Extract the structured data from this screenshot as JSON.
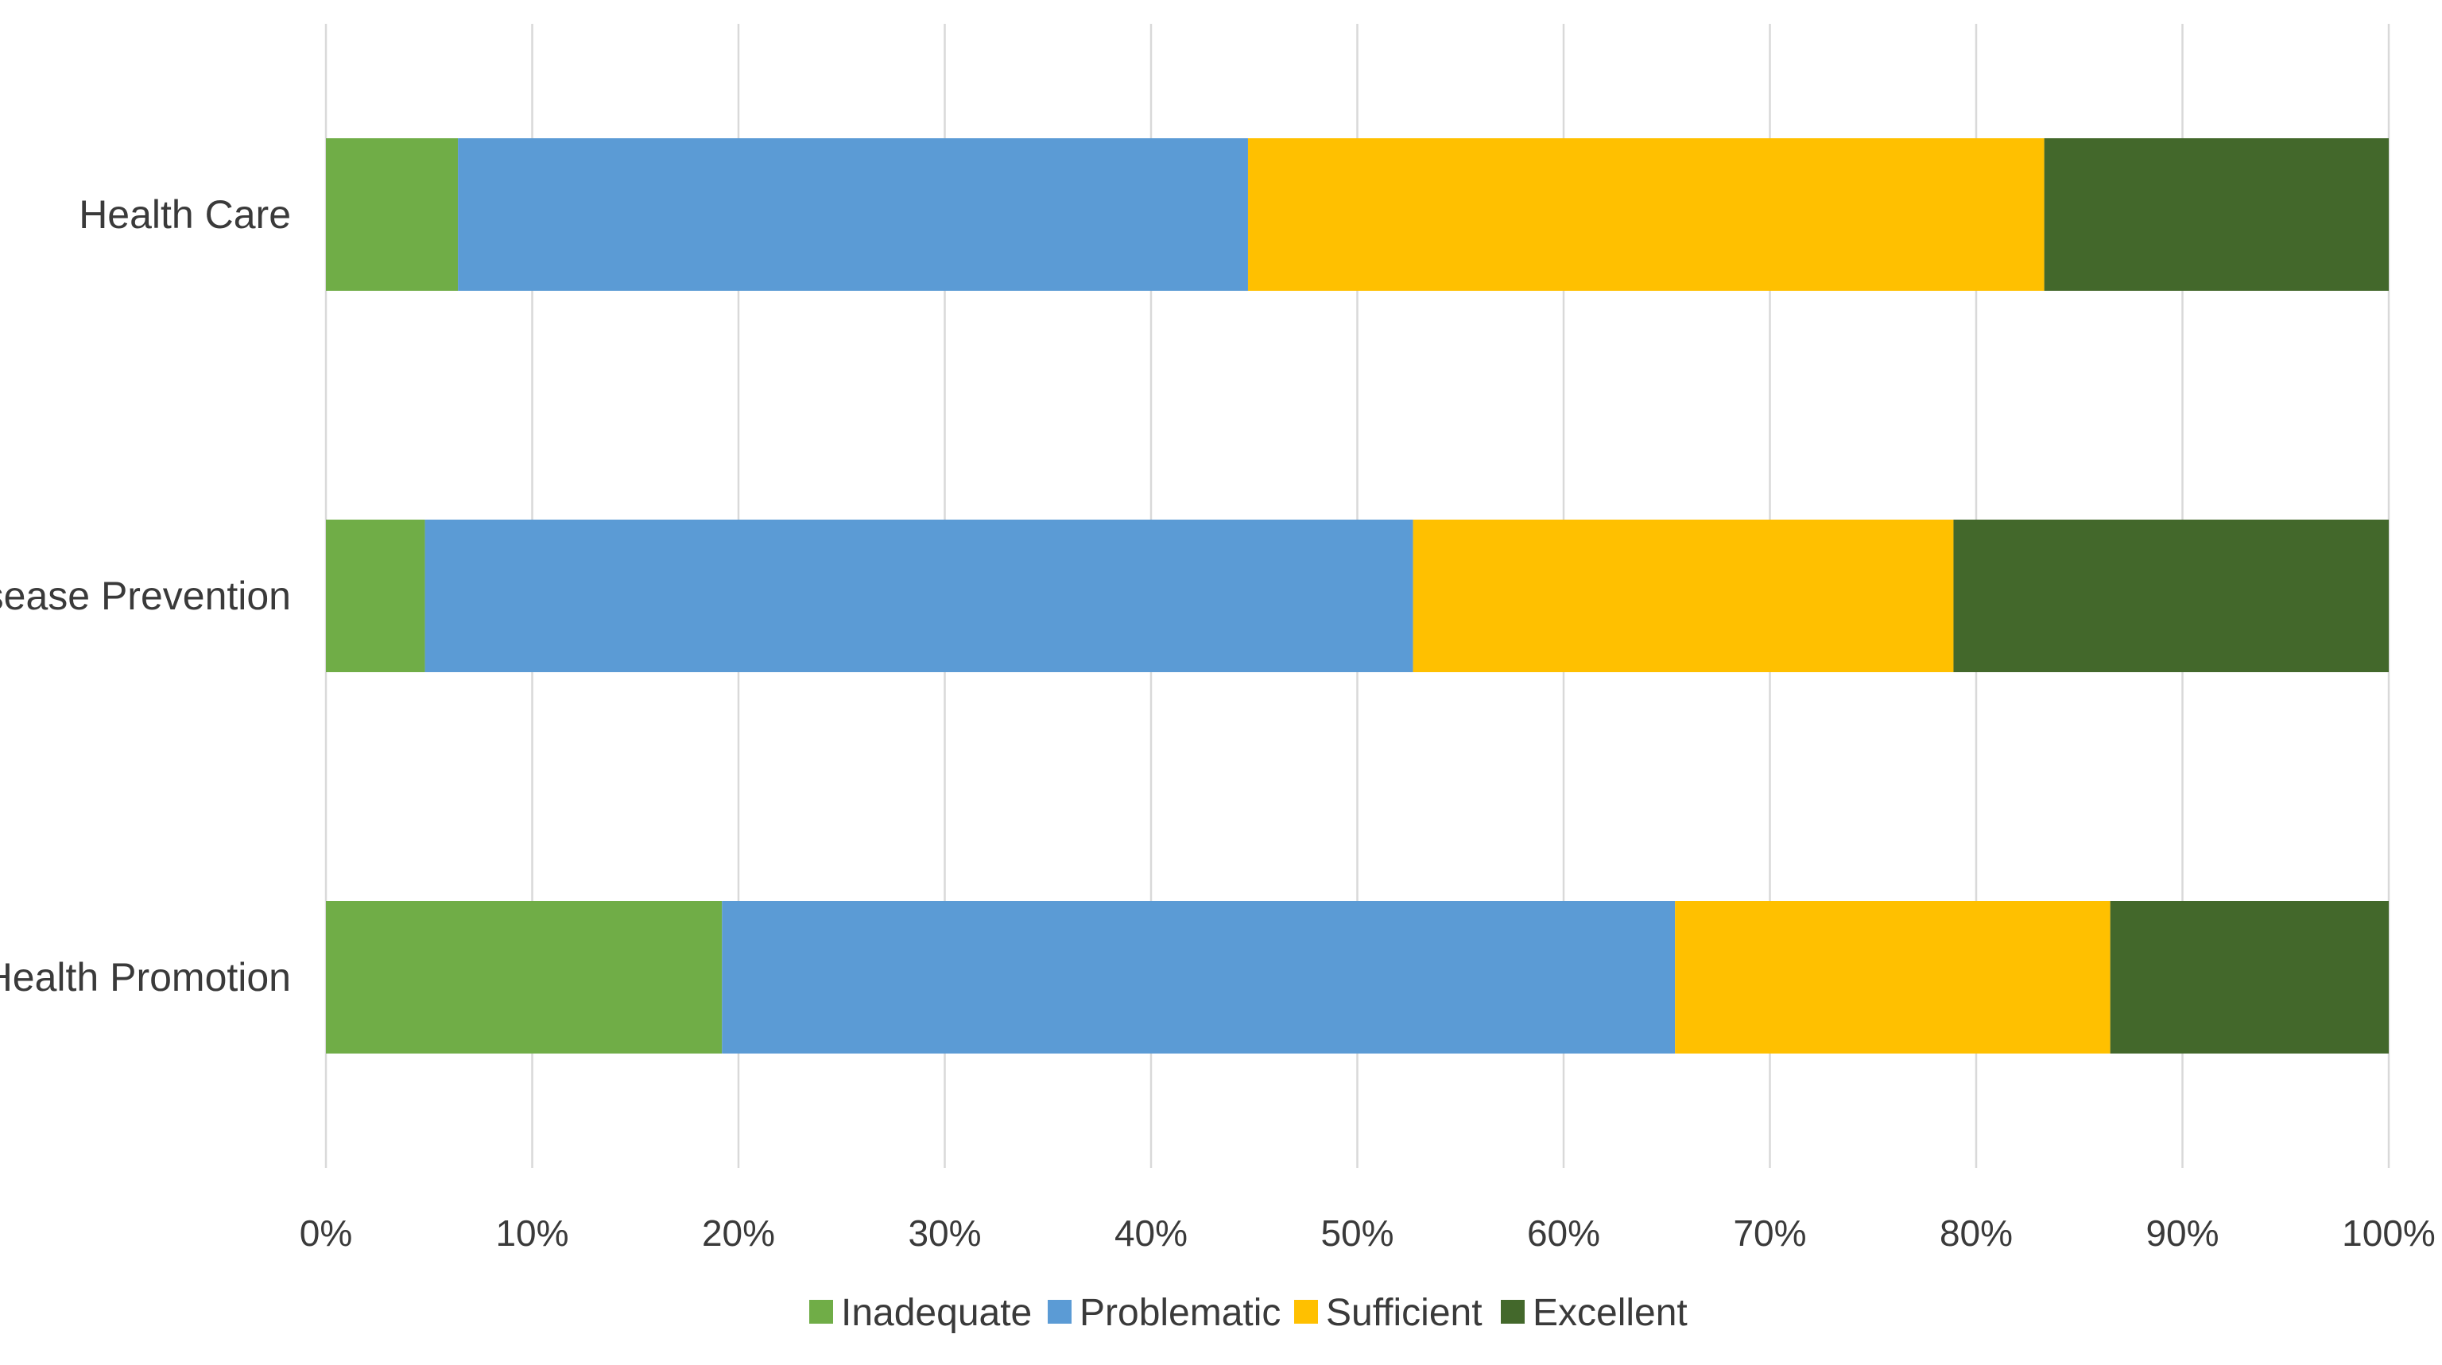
{
  "chart_data": {
    "type": "bar",
    "orientation": "horizontal",
    "stacked": true,
    "percent_stacked": true,
    "title": "",
    "xlabel": "",
    "ylabel": "",
    "categories": [
      "Health Care",
      "Disease Prevention",
      "Health Promotion"
    ],
    "series": [
      {
        "name": "Inadequate",
        "color": "#70AD47",
        "values": [
          6.4,
          4.8,
          19.2
        ]
      },
      {
        "name": "Problematic",
        "color": "#5B9BD5",
        "values": [
          38.3,
          47.9,
          46.2
        ]
      },
      {
        "name": "Sufficient",
        "color": "#FFC000",
        "values": [
          38.6,
          26.2,
          21.1
        ]
      },
      {
        "name": "Excellent",
        "color": "#43682B",
        "values": [
          16.7,
          21.1,
          13.5
        ]
      }
    ],
    "xlim": [
      0,
      100
    ],
    "x_ticks": [
      "0%",
      "10%",
      "20%",
      "30%",
      "40%",
      "50%",
      "60%",
      "70%",
      "80%",
      "90%",
      "100%"
    ],
    "grid": "vertical",
    "legend": "bottom"
  }
}
